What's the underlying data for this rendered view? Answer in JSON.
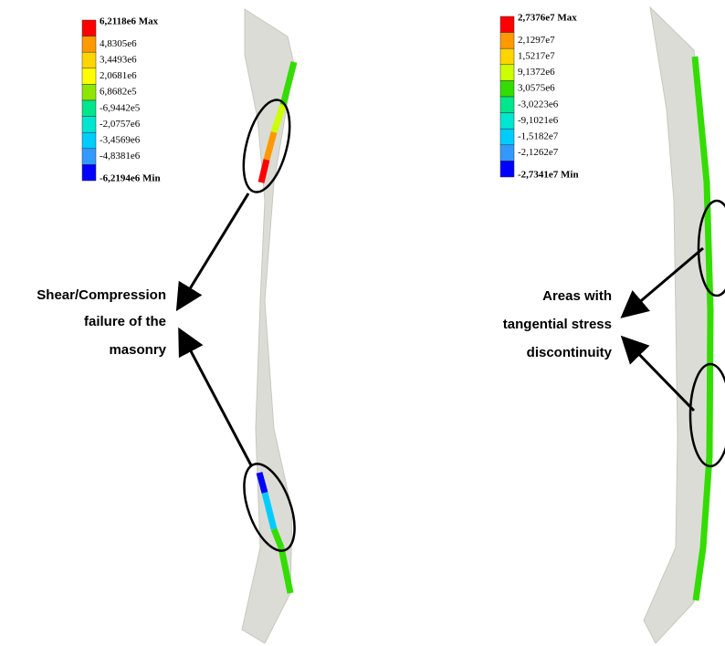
{
  "left_panel": {
    "legend": [
      "6,2118e6 Max",
      "4,8305e6",
      "3,4493e6",
      "2,0681e6",
      "6,8682e5",
      "-6,9442e5",
      "-2,0757e6",
      "-3,4569e6",
      "-4,8381e6",
      "-6,2194e6 Min"
    ],
    "annotation": [
      "Shear/Compression",
      "failure of the",
      "masonry"
    ]
  },
  "right_panel": {
    "legend": [
      "2,7376e7 Max",
      "2,1297e7",
      "1,5217e7",
      "9,1372e6",
      "3,0575e6",
      "-3,0223e6",
      "-9,1021e6",
      "-1,5182e7",
      "-2,1262e7",
      "-2,7341e7 Min"
    ],
    "annotation": [
      "Areas with",
      "tangential stress",
      "discontinuity"
    ]
  }
}
